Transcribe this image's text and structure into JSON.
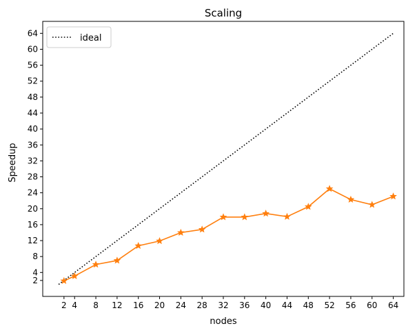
{
  "chart_data": {
    "type": "line",
    "title": "Scaling",
    "xlabel": "nodes",
    "ylabel": "Speedup",
    "xlim": [
      -2,
      66
    ],
    "ylim": [
      -2,
      67
    ],
    "xticks": [
      2,
      4,
      8,
      12,
      16,
      20,
      24,
      28,
      32,
      36,
      40,
      44,
      48,
      52,
      56,
      60,
      64
    ],
    "yticks": [
      2,
      4,
      8,
      12,
      16,
      20,
      24,
      28,
      32,
      36,
      40,
      44,
      48,
      52,
      56,
      60,
      64
    ],
    "grid": false,
    "legend_position": "top-left",
    "series": [
      {
        "name": "ideal",
        "style": "dotted",
        "color": "#000000",
        "x": [
          1,
          64
        ],
        "y": [
          1,
          64
        ]
      },
      {
        "style": "solid",
        "marker": "star",
        "color": "#ff7f0e",
        "x": [
          2,
          4,
          8,
          12,
          16,
          20,
          24,
          28,
          32,
          36,
          40,
          44,
          48,
          52,
          56,
          60,
          64
        ],
        "y": [
          1.9,
          3.1,
          6.0,
          7.0,
          10.7,
          11.9,
          14.0,
          14.8,
          17.9,
          17.9,
          18.8,
          18.0,
          20.5,
          25.0,
          22.3,
          21.0,
          23.1
        ]
      }
    ]
  }
}
